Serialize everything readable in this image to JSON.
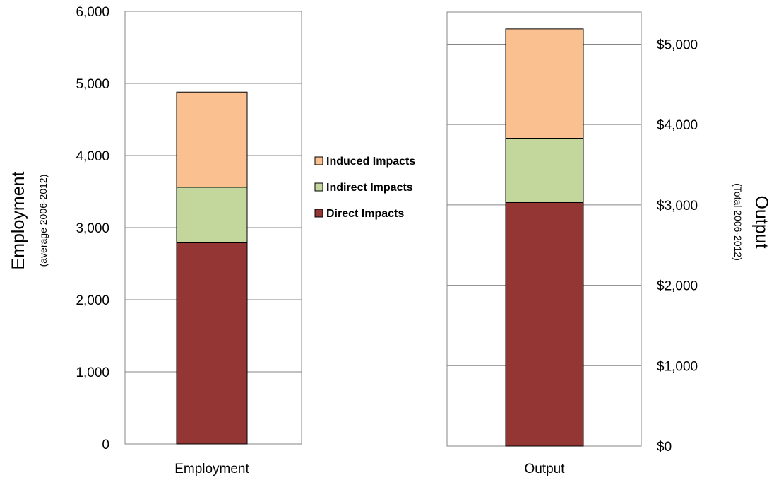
{
  "chart_data": [
    {
      "type": "bar",
      "stacked": true,
      "categories": [
        "Employment"
      ],
      "series": [
        {
          "name": "Direct Impacts",
          "values": [
            2790
          ],
          "color": "#943634"
        },
        {
          "name": "Indirect Impacts",
          "values": [
            770
          ],
          "color": "#c3d69b"
        },
        {
          "name": "Induced Impacts",
          "values": [
            1320
          ],
          "color": "#fac090"
        }
      ],
      "ylabel": "Employment",
      "ylabel_sub": "(average 2006-2012)",
      "ylim": [
        0,
        6000
      ],
      "yticks": [
        0,
        1000,
        2000,
        3000,
        4000,
        5000,
        6000
      ],
      "ytick_labels": [
        "0",
        "1,000",
        "2,000",
        "3,000",
        "4,000",
        "5,000",
        "6,000"
      ],
      "y_axis_side": "left",
      "grid": true
    },
    {
      "type": "bar",
      "stacked": true,
      "categories": [
        "Output"
      ],
      "series": [
        {
          "name": "Direct Impacts",
          "values": [
            3030
          ],
          "color": "#943634"
        },
        {
          "name": "Indirect Impacts",
          "values": [
            800
          ],
          "color": "#c3d69b"
        },
        {
          "name": "Induced Impacts",
          "values": [
            1360
          ],
          "color": "#fac090"
        }
      ],
      "ylabel": "Output",
      "ylabel_sub": "(Total 2006-2012)",
      "ylim": [
        0,
        5400
      ],
      "yticks": [
        0,
        1000,
        2000,
        3000,
        4000,
        5000
      ],
      "ytick_labels": [
        "$0",
        "$1,000",
        "$2,000",
        "$3,000",
        "$4,000",
        "$5,000"
      ],
      "y_axis_side": "right",
      "grid": true
    }
  ],
  "legend": {
    "placement": "center",
    "items": [
      {
        "label": "Induced Impacts",
        "color": "#fac090"
      },
      {
        "label": "Indirect Impacts",
        "color": "#c3d69b"
      },
      {
        "label": "Direct Impacts",
        "color": "#943634"
      }
    ]
  }
}
